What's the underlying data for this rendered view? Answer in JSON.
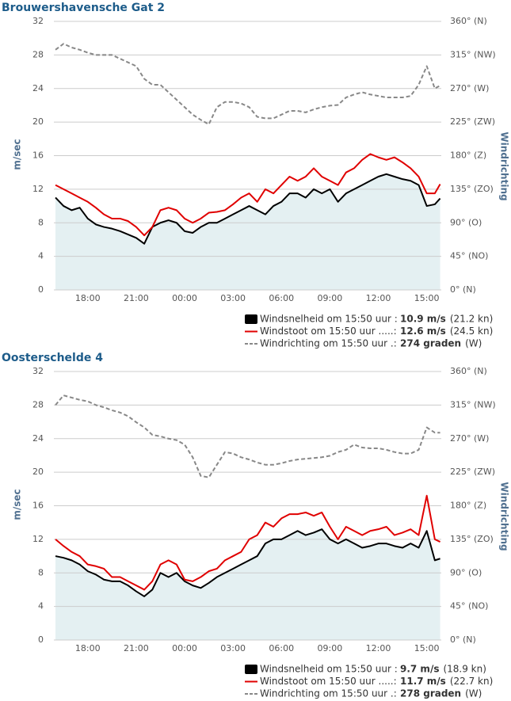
{
  "chart_data": [
    {
      "type": "line",
      "title": "Brouwershavensche Gat 2",
      "ylabel": "m/sec",
      "y2label": "Windrichting",
      "grid": true,
      "x": [
        16,
        16.5,
        17,
        17.5,
        18,
        18.5,
        19,
        19.5,
        20,
        20.5,
        21,
        21.5,
        22,
        22.5,
        23,
        23.5,
        24,
        24.5,
        25,
        25.5,
        26,
        26.5,
        27,
        27.5,
        28,
        28.5,
        29,
        29.5,
        30,
        30.5,
        31,
        31.5,
        32,
        32.5,
        33,
        33.5,
        34,
        34.5,
        35,
        35.5,
        36,
        36.5,
        37,
        37.5,
        38,
        38.5,
        39,
        39.5,
        39.83
      ],
      "xlim": [
        15.9,
        39.9
      ],
      "xticks": [
        {
          "value": 18,
          "label": "18:00"
        },
        {
          "value": 21,
          "label": "21:00"
        },
        {
          "value": 24,
          "label": "00:00"
        },
        {
          "value": 27,
          "label": "03:00"
        },
        {
          "value": 30,
          "label": "06:00"
        },
        {
          "value": 33,
          "label": "09:00"
        },
        {
          "value": 36,
          "label": "12:00"
        },
        {
          "value": 39,
          "label": "15:00"
        }
      ],
      "ylim": [
        0,
        32
      ],
      "yticks": [
        0,
        4,
        8,
        12,
        16,
        20,
        24,
        28,
        32
      ],
      "y2lim": [
        0,
        360
      ],
      "y2ticks": [
        {
          "value": 0,
          "label": "0° (N)"
        },
        {
          "value": 45,
          "label": "45° (NO)"
        },
        {
          "value": 90,
          "label": "90° (O)"
        },
        {
          "value": 135,
          "label": "135° (ZO)"
        },
        {
          "value": 180,
          "label": "180° (Z)"
        },
        {
          "value": 225,
          "label": "225° (ZW)"
        },
        {
          "value": 270,
          "label": "270° (W)"
        },
        {
          "value": 315,
          "label": "315° (NW)"
        },
        {
          "value": 360,
          "label": "360° (N)"
        }
      ],
      "series": [
        {
          "name": "Windsnelheid om 15:50 uur :",
          "legend_value": "10.9 m/s",
          "legend_extra": "(21.2 kn)",
          "color": "#000000",
          "area": true,
          "area_color": "#e4f0f2",
          "values": [
            11,
            10,
            9.5,
            9.8,
            8.5,
            7.8,
            7.5,
            7.3,
            7,
            6.6,
            6.2,
            5.5,
            7.5,
            8,
            8.3,
            8,
            7,
            6.8,
            7.5,
            8,
            8,
            8.5,
            9,
            9.5,
            10,
            9.5,
            9,
            10,
            10.5,
            11.5,
            11.5,
            11,
            12,
            11.5,
            12,
            10.5,
            11.5,
            12,
            12.5,
            13,
            13.5,
            13.8,
            13.5,
            13.2,
            13,
            12.5,
            10,
            10.2,
            10.9
          ]
        },
        {
          "name": "Windstoot om 15:50 uur .....:",
          "legend_value": "12.6 m/s",
          "legend_extra": "(24.5 kn)",
          "color": "#e00000",
          "values": [
            12.5,
            12,
            11.5,
            11,
            10.5,
            9.8,
            9,
            8.5,
            8.5,
            8.2,
            7.5,
            6.5,
            7.5,
            9.5,
            9.8,
            9.5,
            8.5,
            8,
            8.5,
            9.2,
            9.3,
            9.5,
            10.2,
            11,
            11.5,
            10.5,
            12,
            11.5,
            12.5,
            13.5,
            13,
            13.5,
            14.5,
            13.5,
            13,
            12.5,
            14,
            14.5,
            15.5,
            16.2,
            15.8,
            15.5,
            15.8,
            15.2,
            14.5,
            13.5,
            11.5,
            11.5,
            12.6
          ]
        },
        {
          "name": "Windrichting om 15:50 uur .:",
          "legend_value": "274 graden",
          "legend_extra": "(W)",
          "color": "#888888",
          "dashed": true,
          "axis": "y2",
          "values": [
            322,
            330,
            325,
            322,
            318,
            315,
            315,
            315,
            310,
            305,
            300,
            283,
            275,
            275,
            265,
            255,
            245,
            235,
            228,
            222,
            245,
            252,
            252,
            250,
            245,
            232,
            230,
            230,
            235,
            240,
            240,
            238,
            242,
            245,
            247,
            248,
            258,
            262,
            265,
            262,
            260,
            258,
            258,
            258,
            260,
            275,
            300,
            270,
            274
          ]
        }
      ]
    },
    {
      "type": "line",
      "title": "Oosterschelde 4",
      "ylabel": "m/sec",
      "y2label": "Windrichting",
      "grid": true,
      "x": [
        16,
        16.5,
        17,
        17.5,
        18,
        18.5,
        19,
        19.5,
        20,
        20.5,
        21,
        21.5,
        22,
        22.5,
        23,
        23.5,
        24,
        24.5,
        25,
        25.5,
        26,
        26.5,
        27,
        27.5,
        28,
        28.5,
        29,
        29.5,
        30,
        30.5,
        31,
        31.5,
        32,
        32.5,
        33,
        33.5,
        34,
        34.5,
        35,
        35.5,
        36,
        36.5,
        37,
        37.5,
        38,
        38.5,
        39,
        39.5,
        39.83
      ],
      "xlim": [
        15.9,
        39.9
      ],
      "xticks": [
        {
          "value": 18,
          "label": "18:00"
        },
        {
          "value": 21,
          "label": "21:00"
        },
        {
          "value": 24,
          "label": "00:00"
        },
        {
          "value": 27,
          "label": "03:00"
        },
        {
          "value": 30,
          "label": "06:00"
        },
        {
          "value": 33,
          "label": "09:00"
        },
        {
          "value": 36,
          "label": "12:00"
        },
        {
          "value": 39,
          "label": "15:00"
        }
      ],
      "ylim": [
        0,
        32
      ],
      "yticks": [
        0,
        4,
        8,
        12,
        16,
        20,
        24,
        28,
        32
      ],
      "y2lim": [
        0,
        360
      ],
      "y2ticks": [
        {
          "value": 0,
          "label": "0° (N)"
        },
        {
          "value": 45,
          "label": "45° (NO)"
        },
        {
          "value": 90,
          "label": "90° (O)"
        },
        {
          "value": 135,
          "label": "135° (ZO)"
        },
        {
          "value": 180,
          "label": "180° (Z)"
        },
        {
          "value": 225,
          "label": "225° (ZW)"
        },
        {
          "value": 270,
          "label": "270° (W)"
        },
        {
          "value": 315,
          "label": "315° (NW)"
        },
        {
          "value": 360,
          "label": "360° (N)"
        }
      ],
      "series": [
        {
          "name": "Windsnelheid om 15:50 uur :",
          "legend_value": "9.7 m/s",
          "legend_extra": "(18.9 kn)",
          "color": "#000000",
          "area": true,
          "area_color": "#e4f0f2",
          "values": [
            10,
            9.8,
            9.5,
            9,
            8.2,
            7.8,
            7.2,
            7,
            7,
            6.5,
            5.8,
            5.2,
            6,
            8,
            7.5,
            8,
            7,
            6.5,
            6.2,
            6.8,
            7.5,
            8,
            8.5,
            9,
            9.5,
            10,
            11.5,
            12,
            12,
            12.5,
            13,
            12.5,
            12.8,
            13.2,
            12,
            11.5,
            12,
            11.5,
            11,
            11.2,
            11.5,
            11.5,
            11.2,
            11,
            11.5,
            11,
            13,
            9.5,
            9.7
          ]
        },
        {
          "name": "Windstoot om 15:50 uur .....:",
          "legend_value": "11.7 m/s",
          "legend_extra": "(22.7 kn)",
          "color": "#e00000",
          "values": [
            12,
            11.2,
            10.5,
            10,
            9,
            8.8,
            8.5,
            7.5,
            7.5,
            7,
            6.5,
            6,
            7,
            9,
            9.5,
            9,
            7.2,
            7,
            7.5,
            8.2,
            8.5,
            9.5,
            10,
            10.5,
            12,
            12.5,
            14,
            13.5,
            14.5,
            15,
            15,
            15.2,
            14.8,
            15.2,
            13.5,
            12,
            13.5,
            13,
            12.5,
            13,
            13.2,
            13.5,
            12.5,
            12.8,
            13.2,
            12.5,
            17.2,
            12,
            11.7
          ]
        },
        {
          "name": "Windrichting om 15:50 uur .:",
          "legend_value": "278 graden",
          "legend_extra": "(W)",
          "color": "#888888",
          "dashed": true,
          "axis": "y2",
          "values": [
            315,
            328,
            325,
            322,
            320,
            315,
            312,
            308,
            305,
            300,
            292,
            285,
            275,
            273,
            270,
            268,
            262,
            245,
            220,
            218,
            235,
            252,
            250,
            245,
            242,
            238,
            235,
            235,
            237,
            240,
            242,
            243,
            244,
            245,
            247,
            252,
            255,
            262,
            258,
            257,
            257,
            255,
            252,
            250,
            250,
            255,
            285,
            278,
            278
          ]
        }
      ]
    }
  ]
}
